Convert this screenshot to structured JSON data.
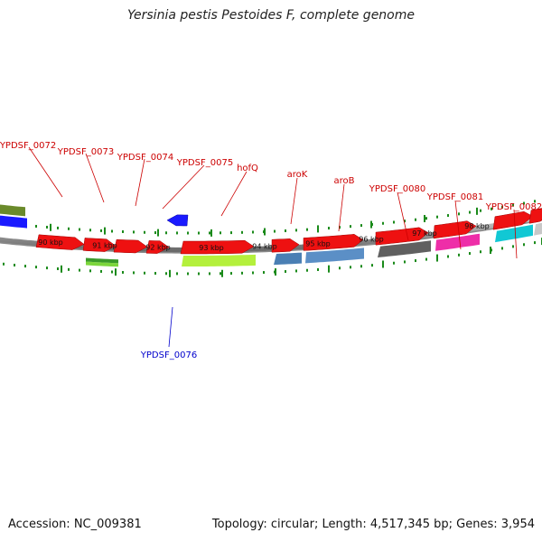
{
  "title": "Yersinia pestis Pestoides F, complete genome",
  "footer": {
    "accession": "Accession: NC_009381",
    "summary": "Topology: circular; Length: 4,517,345 bp; Genes: 3,954"
  },
  "ticks": [
    "90 kbp",
    "91 kbp",
    "92 kbp",
    "93 kbp",
    "94 kbp",
    "95 kbp",
    "96 kbp",
    "97 kbp",
    "98 kbp"
  ],
  "gene_labels": [
    {
      "text": "YPDSF_0072",
      "strand": "forward"
    },
    {
      "text": "YPDSF_0073",
      "strand": "forward"
    },
    {
      "text": "YPDSF_0074",
      "strand": "forward"
    },
    {
      "text": "YPDSF_0075",
      "strand": "forward"
    },
    {
      "text": "hofQ",
      "strand": "forward"
    },
    {
      "text": "aroK",
      "strand": "forward"
    },
    {
      "text": "aroB",
      "strand": "forward"
    },
    {
      "text": "YPDSF_0080",
      "strand": "forward"
    },
    {
      "text": "YPDSF_0081",
      "strand": "forward"
    },
    {
      "text": "YPDSF_0082",
      "strand": "forward"
    },
    {
      "text": "YPDSF_0076",
      "strand": "reverse"
    }
  ],
  "colors": {
    "cds": "#ee1111",
    "reverse_gene": "#1a1aff",
    "backbone": "#8a8a8a",
    "tick": "#1a8a1a",
    "label_forward": "#cc0000",
    "label_reverse": "#0000cc"
  }
}
